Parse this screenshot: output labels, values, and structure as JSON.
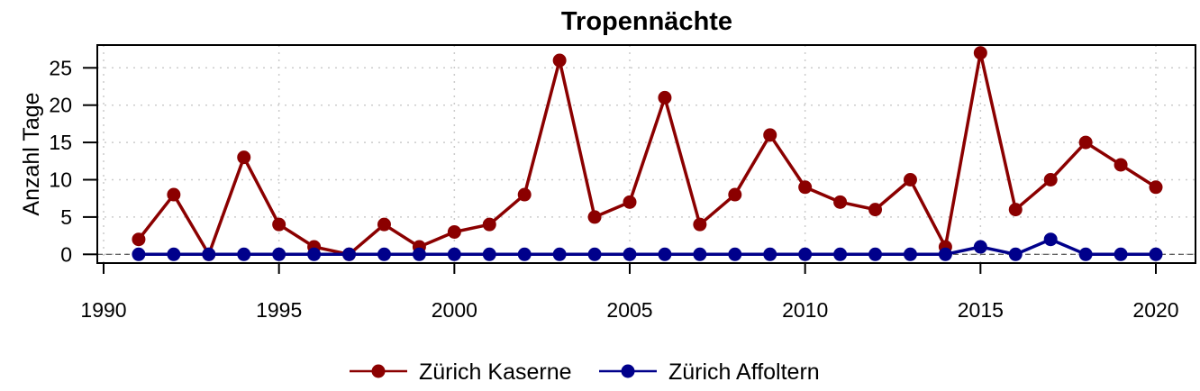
{
  "chart_data": {
    "type": "line",
    "title": "Tropennächte",
    "xlabel": "",
    "ylabel": "Anzahl Tage",
    "xlim": [
      1990,
      2021
    ],
    "ylim": [
      -1,
      27.5
    ],
    "xticks": [
      1990,
      1995,
      2000,
      2005,
      2010,
      2015,
      2020
    ],
    "yticks": [
      0,
      5,
      10,
      15,
      20,
      25
    ],
    "grid": true,
    "legend_position": "bottom",
    "x": [
      1991,
      1992,
      1993,
      1994,
      1995,
      1996,
      1997,
      1998,
      1999,
      2000,
      2001,
      2002,
      2003,
      2004,
      2005,
      2006,
      2007,
      2008,
      2009,
      2010,
      2011,
      2012,
      2013,
      2014,
      2015,
      2016,
      2017,
      2018,
      2019,
      2020
    ],
    "series": [
      {
        "name": "Zürich Kaserne",
        "color": "#8b0000",
        "values": [
          2,
          8,
          0,
          13,
          4,
          1,
          0,
          4,
          1,
          3,
          4,
          8,
          26,
          5,
          7,
          21,
          4,
          8,
          16,
          9,
          7,
          6,
          10,
          1,
          27,
          6,
          10,
          15,
          12,
          9
        ]
      },
      {
        "name": "Zürich Affoltern",
        "color": "#00008b",
        "values": [
          0,
          0,
          0,
          0,
          0,
          0,
          0,
          0,
          0,
          0,
          0,
          0,
          0,
          0,
          0,
          0,
          0,
          0,
          0,
          0,
          0,
          0,
          0,
          0,
          1,
          0,
          2,
          0,
          0,
          0
        ]
      }
    ]
  }
}
